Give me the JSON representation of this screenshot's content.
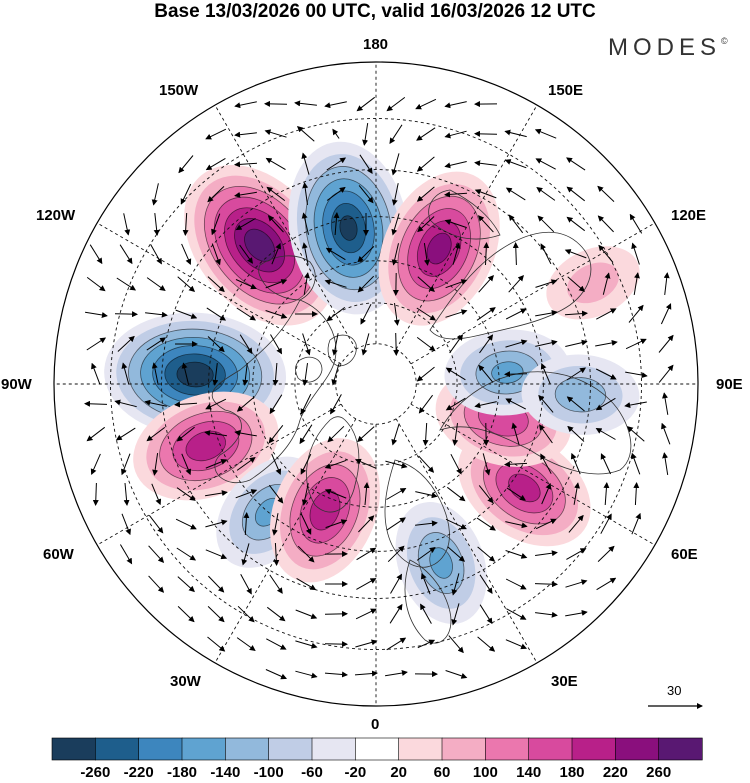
{
  "title": "Base 13/03/2026 00 UTC, valid 16/03/2026 12 UTC",
  "logo": "MODES",
  "logo_mark": "©",
  "meridian_labels": {
    "m180": "180",
    "m150w": "150W",
    "m150e": "150E",
    "m120w": "120W",
    "m120e": "120E",
    "m90w": "90W",
    "m90e": "90E",
    "m60w": "60W",
    "m60e": "60E",
    "m30w": "30W",
    "m30e": "30E",
    "m0": "0"
  },
  "vector_reference": "30",
  "colorbar": {
    "labels": [
      "-260",
      "-220",
      "-180",
      "-140",
      "-100",
      "-60",
      "-20",
      "20",
      "60",
      "100",
      "140",
      "180",
      "220",
      "260"
    ],
    "colors": [
      "#1a3d5c",
      "#1e5e8c",
      "#3d86be",
      "#5fa3d1",
      "#92b9dc",
      "#c0cde6",
      "#e6e6f2",
      "#ffffff",
      "#fbd9dd",
      "#f4adc4",
      "#eb77ae",
      "#d84a9e",
      "#b82089",
      "#8a0f7d",
      "#591872"
    ]
  },
  "anomalies": [
    {
      "lon": -140,
      "lat": 47,
      "value": 280
    },
    {
      "lon": -170,
      "lat": 52,
      "value": -260
    },
    {
      "lon": 155,
      "lat": 54,
      "value": 230
    },
    {
      "lon": -93,
      "lat": 47,
      "value": -280
    },
    {
      "lon": -70,
      "lat": 47,
      "value": 200
    },
    {
      "lon": -40,
      "lat": 50,
      "value": -140
    },
    {
      "lon": -22,
      "lat": 57,
      "value": 200
    },
    {
      "lon": 20,
      "lat": 45,
      "value": -140
    },
    {
      "lon": 55,
      "lat": 47,
      "value": 190
    },
    {
      "lon": 75,
      "lat": 58,
      "value": 170
    },
    {
      "lon": 95,
      "lat": 58,
      "value": -140
    },
    {
      "lon": 87,
      "lat": 42,
      "value": -120
    },
    {
      "lon": 115,
      "lat": 35,
      "value": 70
    }
  ]
}
